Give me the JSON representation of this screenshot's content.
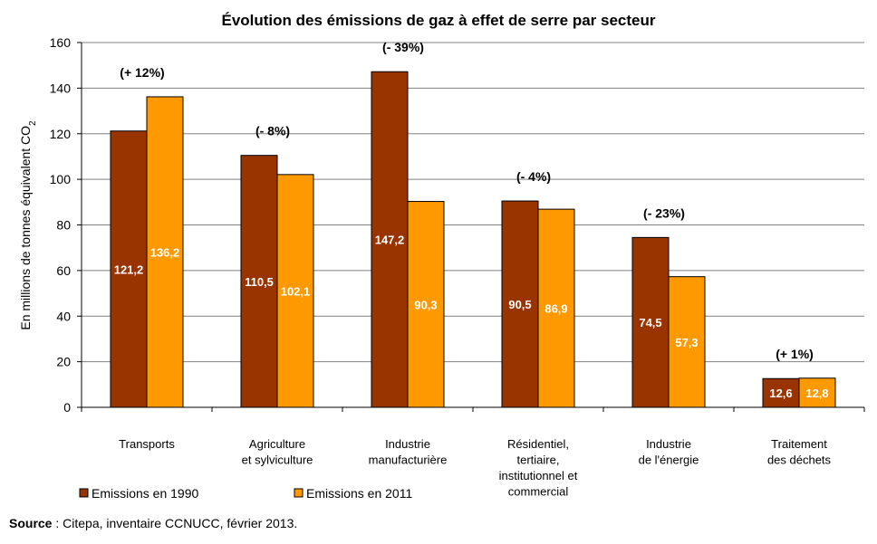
{
  "chart_data": {
    "type": "bar",
    "title": "Évolution des émissions de gaz à effet de serre par secteur",
    "ylabel": "En millions de tonnes équivalent CO",
    "ylabel_sub": "2",
    "ylim": [
      0,
      160
    ],
    "yticks": [
      "0",
      "20",
      "40",
      "60",
      "80",
      "100",
      "120",
      "140",
      "160"
    ],
    "categories": [
      [
        "Transports"
      ],
      [
        "Agriculture",
        "et sylviculture"
      ],
      [
        "Industrie",
        "manufacturière"
      ],
      [
        "Résidentiel,",
        "tertiaire,",
        "institutionnel et",
        "commercial"
      ],
      [
        "Industrie",
        "de l'énergie"
      ],
      [
        "Traitement",
        "des déchets"
      ]
    ],
    "series": [
      {
        "name": "Emissions en 1990",
        "color": "#993300",
        "values": [
          121.2,
          110.5,
          147.2,
          90.5,
          74.5,
          12.6
        ],
        "labels": [
          "121,2",
          "110,5",
          "147,2",
          "90,5",
          "74,5",
          "12,6"
        ]
      },
      {
        "name": "Emissions en 2011",
        "color": "#ff9900",
        "values": [
          136.2,
          102.1,
          90.3,
          86.9,
          57.3,
          12.8
        ],
        "labels": [
          "136,2",
          "102,1",
          "90,3",
          "86,9",
          "57,3",
          "12,8"
        ]
      }
    ],
    "changes": [
      "(+ 12%)",
      "(- 8%)",
      "(- 39%)",
      "(- 4%)",
      "(- 23%)",
      "(+ 1%)"
    ],
    "grid": true,
    "legend": "bottom-left"
  },
  "source": {
    "label": "Source",
    "text": " : Citepa, inventaire CCNUCC, février 2013."
  }
}
